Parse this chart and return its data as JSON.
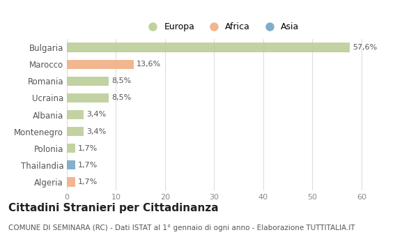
{
  "categories": [
    "Bulgaria",
    "Marocco",
    "Romania",
    "Ucraina",
    "Albania",
    "Montenegro",
    "Polonia",
    "Thailandia",
    "Algeria"
  ],
  "values": [
    57.6,
    13.6,
    8.5,
    8.5,
    3.4,
    3.4,
    1.7,
    1.7,
    1.7
  ],
  "labels": [
    "57,6%",
    "13,6%",
    "8,5%",
    "8,5%",
    "3,4%",
    "3,4%",
    "1,7%",
    "1,7%",
    "1,7%"
  ],
  "continents": [
    "Europa",
    "Africa",
    "Europa",
    "Europa",
    "Europa",
    "Europa",
    "Europa",
    "Asia",
    "Africa"
  ],
  "colors": {
    "Europa": "#b5c98e",
    "Africa": "#f0a878",
    "Asia": "#6a9fc0"
  },
  "legend_items": [
    "Europa",
    "Africa",
    "Asia"
  ],
  "legend_colors": [
    "#b5c98e",
    "#f0a878",
    "#6a9fc0"
  ],
  "xlim": [
    0,
    63
  ],
  "xticks": [
    0,
    10,
    20,
    30,
    40,
    50,
    60
  ],
  "title": "Cittadini Stranieri per Cittadinanza",
  "subtitle": "COMUNE DI SEMINARA (RC) - Dati ISTAT al 1° gennaio di ogni anno - Elaborazione TUTTITALIA.IT",
  "background_color": "#ffffff",
  "plot_bg_color": "#ffffff",
  "grid_color": "#dddddd",
  "bar_height": 0.55,
  "label_fontsize": 8.0,
  "ytick_fontsize": 8.5,
  "xtick_fontsize": 8.0,
  "title_fontsize": 11,
  "subtitle_fontsize": 7.5
}
